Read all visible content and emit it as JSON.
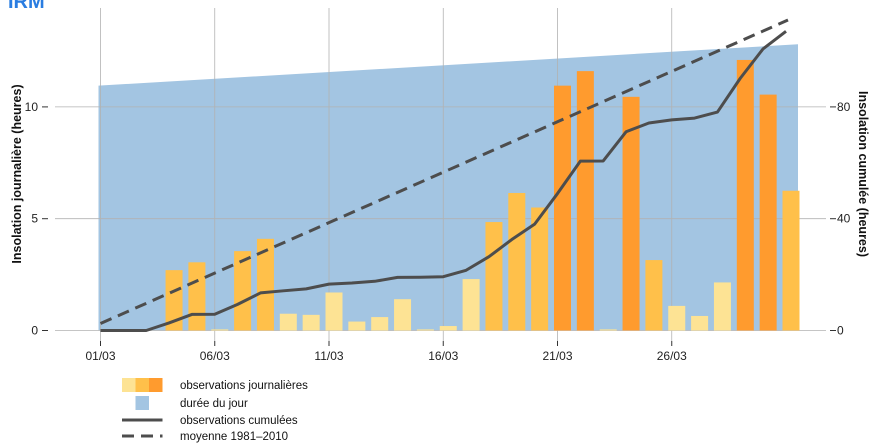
{
  "logo": {
    "text": "IRM",
    "color": "#2a7de1"
  },
  "chart_data": {
    "type": "bar",
    "title": "",
    "ylabel_left": "Insolation journalière (heures)",
    "ylabel_right": "Insolation cumulée (heures)",
    "xlabel": "",
    "x_tick_labels": [
      "01/03",
      "06/03",
      "11/03",
      "16/03",
      "21/03",
      "26/03"
    ],
    "x_tick_days": [
      1,
      6,
      11,
      16,
      21,
      26
    ],
    "ylim_left": [
      0,
      13.5
    ],
    "ylim_right": [
      0,
      108
    ],
    "y_ticks_left": [
      "0",
      "5",
      "10"
    ],
    "y_ticks_right": [
      "0",
      "40",
      "80"
    ],
    "grid": true,
    "legend_position": "bottom-left",
    "colors": {
      "background": "#a3c5e2",
      "grid": "#b2b2b2",
      "bar_low": "#fde394",
      "bar_mid": "#ffc04a",
      "bar_high": "#ff9b2e",
      "line": "#4d4d4d"
    },
    "series": [
      {
        "name": "observations journalières",
        "kind": "bar",
        "days": [
          1,
          2,
          3,
          4,
          5,
          6,
          7,
          8,
          9,
          10,
          11,
          12,
          13,
          14,
          15,
          16,
          17,
          18,
          19,
          20,
          21,
          22,
          23,
          24,
          25,
          26,
          27,
          28,
          29,
          30,
          31
        ],
        "values": [
          0.0,
          0.0,
          0.0,
          2.7,
          3.05,
          0.05,
          3.55,
          4.1,
          0.75,
          0.7,
          1.7,
          0.4,
          0.6,
          1.4,
          0.05,
          0.2,
          2.3,
          4.85,
          6.15,
          5.5,
          10.95,
          11.6,
          0.05,
          10.45,
          3.15,
          1.1,
          0.65,
          2.15,
          12.1,
          10.55,
          6.25
        ]
      },
      {
        "name": "durée du jour",
        "kind": "area",
        "days": [
          1,
          31
        ],
        "values": [
          10.95,
          12.8
        ]
      },
      {
        "name": "observations cumulées",
        "kind": "line",
        "days": [
          1,
          2,
          3,
          4,
          5,
          6,
          7,
          8,
          9,
          10,
          11,
          12,
          13,
          14,
          15,
          16,
          17,
          18,
          19,
          20,
          21,
          22,
          23,
          24,
          25,
          26,
          27,
          28,
          29,
          30,
          31
        ],
        "values": [
          0,
          0,
          0,
          2.7,
          5.75,
          5.8,
          9.35,
          13.45,
          14.2,
          14.9,
          16.6,
          17.0,
          17.6,
          19.0,
          19.05,
          19.25,
          21.55,
          26.4,
          32.55,
          38.05,
          49.0,
          60.6,
          60.65,
          71.1,
          74.25,
          75.35,
          76.0,
          78.15,
          90.25,
          100.8,
          107.05
        ]
      },
      {
        "name": "moyenne 1981–2010",
        "kind": "line-dashed",
        "days": [
          1,
          31
        ],
        "values": [
          2.5,
          110
        ]
      }
    ]
  }
}
